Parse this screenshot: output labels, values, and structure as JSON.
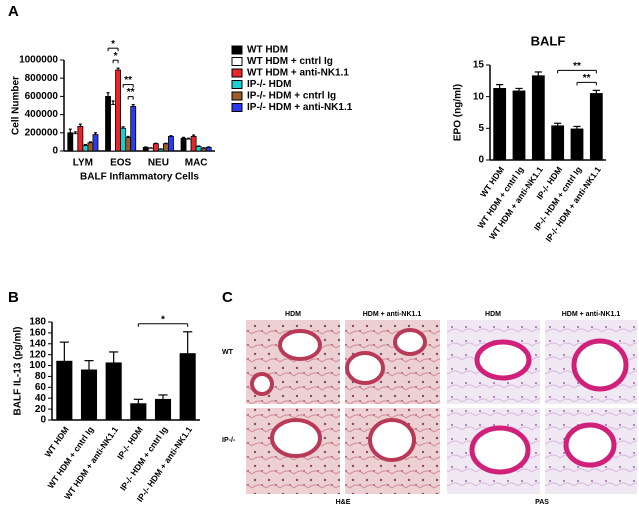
{
  "panel_labels": [
    "A",
    "B",
    "C"
  ],
  "chart_data": [
    {
      "type": "bar",
      "y_label": "Cell Number",
      "x_label": "BALF Inflammatory Cells",
      "categories": [
        "LYM",
        "EOS",
        "NEU",
        "MAC"
      ],
      "series": [
        {
          "name": "WT HDM",
          "color": "#000000",
          "values": [
            200000,
            600000,
            40000,
            140000
          ],
          "errors": [
            40000,
            40000,
            5000,
            10000
          ]
        },
        {
          "name": "WT HDM + cntrl Ig",
          "color": "#ffffff",
          "values": [
            190000,
            510000,
            30000,
            130000
          ],
          "errors": [
            20000,
            40000,
            5000,
            10000
          ]
        },
        {
          "name": "WT HDM + anti-NK1.1",
          "color": "#e8262a",
          "values": [
            270000,
            890000,
            80000,
            160000
          ],
          "errors": [
            25000,
            20000,
            5000,
            15000
          ]
        },
        {
          "name": "IP-/- HDM",
          "color": "#19d0d0",
          "values": [
            60000,
            250000,
            20000,
            50000
          ],
          "errors": [
            10000,
            15000,
            3000,
            5000
          ]
        },
        {
          "name": "IP-/- HDM + cntrl Ig",
          "color": "#9a5a2c",
          "values": [
            90000,
            150000,
            80000,
            30000
          ],
          "errors": [
            10000,
            10000,
            5000,
            5000
          ]
        },
        {
          "name": "IP-/- HDM + anti-NK1.1",
          "color": "#2b3cf0",
          "values": [
            180000,
            490000,
            160000,
            40000
          ],
          "errors": [
            20000,
            20000,
            8000,
            5000
          ]
        }
      ],
      "annotations": [
        {
          "text": "*",
          "category": "EOS",
          "from": "WT HDM + cntrl Ig",
          "to": "WT HDM + anti-NK1.1"
        },
        {
          "text": "*",
          "category": "EOS",
          "from": "WT HDM",
          "to": "WT HDM + anti-NK1.1"
        },
        {
          "text": "**",
          "category": "EOS",
          "from": "IP-/- HDM + cntrl Ig",
          "to": "IP-/- HDM + anti-NK1.1"
        },
        {
          "text": "**",
          "category": "EOS",
          "from": "IP-/- HDM",
          "to": "IP-/- HDM + anti-NK1.1"
        }
      ],
      "ylim": [
        0,
        1000000
      ],
      "yticks": [
        0,
        200000,
        400000,
        600000,
        800000,
        1000000
      ]
    },
    {
      "type": "bar",
      "title": "BALF",
      "y_label": "EPO (ng/ml)",
      "color": "#000000",
      "categories": [
        "WT HDM",
        "WT HDM + cntrl Ig",
        "WT HDM + anti-NK1.1",
        "IP-/- HDM",
        "IP-/- HDM + cntrl Ig",
        "IP-/- HDM + anti-NK1.1"
      ],
      "values": [
        11.3,
        10.9,
        13.3,
        5.4,
        4.9,
        10.5
      ],
      "errors": [
        0.6,
        0.4,
        0.6,
        0.4,
        0.4,
        0.5
      ],
      "annotations": [
        {
          "text": "**",
          "from": "IP-/- HDM + cntrl Ig",
          "to": "IP-/- HDM + anti-NK1.1"
        },
        {
          "text": "**",
          "from": "IP-/- HDM",
          "to": "IP-/- HDM + anti-NK1.1"
        }
      ],
      "ylim": [
        0,
        15
      ],
      "yticks": [
        0,
        5,
        10,
        15
      ]
    },
    {
      "type": "bar",
      "y_label": "BALF IL-13 (pg/ml)",
      "color": "#000000",
      "categories": [
        "WT HDM",
        "WT HDM + cntrl Ig",
        "WT HDM + anti-NK1.1",
        "IP-/- HDM",
        "IP-/- HDM + cntrl Ig",
        "IP-/- HDM + anti-NK1.1"
      ],
      "values": [
        108,
        92,
        105,
        30,
        38,
        122
      ],
      "errors": [
        35,
        17,
        20,
        8,
        8,
        40
      ],
      "annotations": [
        {
          "text": "*",
          "from": "IP-/- HDM",
          "to": "IP-/- HDM + anti-NK1.1"
        }
      ],
      "ylim": [
        0,
        180
      ],
      "yticks": [
        0,
        20,
        40,
        60,
        80,
        100,
        120,
        140,
        160,
        180
      ]
    }
  ],
  "histology": {
    "columns": [
      "HDM",
      "HDM + anti-NK1.1",
      "HDM",
      "HDM + anti-NK1.1"
    ],
    "rows": [
      "WT",
      "IP-/-"
    ],
    "stains": [
      "H&E",
      "PAS"
    ]
  }
}
